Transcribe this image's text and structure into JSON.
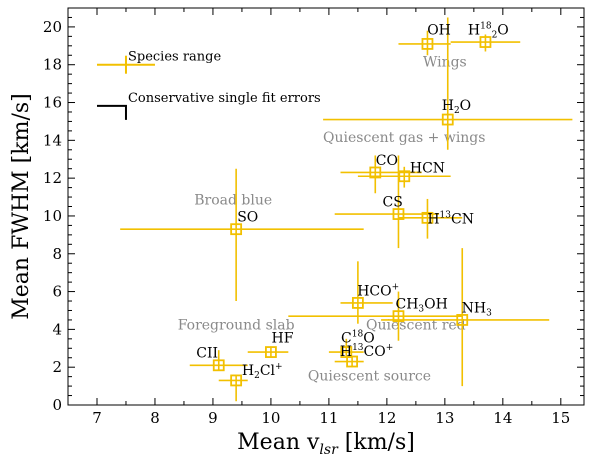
{
  "chart_data": {
    "type": "scatter",
    "xlabel": "Mean v",
    "xlabel_sub": "lsr",
    "xlabel_unit": "[km/s]",
    "ylabel": "Mean FWHM [km/s]",
    "xlim": [
      6.5,
      15.4
    ],
    "ylim": [
      0,
      21
    ],
    "xticks": [
      7,
      8,
      9,
      10,
      11,
      12,
      13,
      14,
      15
    ],
    "yticks": [
      0,
      2,
      4,
      6,
      8,
      10,
      12,
      14,
      16,
      18,
      20
    ],
    "color": "#f2c000",
    "legend": {
      "range_label": "Species range",
      "error_label": "Conservative single fit errors"
    },
    "regions": [
      {
        "text": "Wings",
        "x": 13.0,
        "y": 17.9
      },
      {
        "text": "Quiescent gas + wings",
        "x": 12.3,
        "y": 13.9
      },
      {
        "text": "Broad blue",
        "x": 9.35,
        "y": 10.6
      },
      {
        "text": "Foreground slab",
        "x": 9.4,
        "y": 4.0
      },
      {
        "text": "Quiescent red",
        "x": 12.5,
        "y": 4.0
      },
      {
        "text": "Quiescent source",
        "x": 11.7,
        "y": 1.3
      }
    ],
    "points": [
      {
        "label": "OH",
        "x": 12.7,
        "y": 19.1,
        "xr": [
          12.2,
          13.1
        ],
        "yr": [
          18.5,
          19.8
        ],
        "lx": 12.9,
        "ly": 19.6
      },
      {
        "label": "H",
        "sup": "18",
        "label2": "O",
        "sub": "2",
        "x": 13.7,
        "y": 19.2,
        "xr": [
          13.1,
          14.3
        ],
        "yr": [
          18.7,
          19.6
        ],
        "lx": 13.75,
        "ly": 19.6
      },
      {
        "label": "H",
        "label2": "O",
        "sub": "2",
        "x": 13.05,
        "y": 15.1,
        "xr": [
          10.9,
          15.2
        ],
        "yr": [
          13.5,
          20.5
        ],
        "lx": 13.2,
        "ly": 15.6
      },
      {
        "label": "CO",
        "x": 11.8,
        "y": 12.3,
        "xr": [
          11.2,
          12.6
        ],
        "yr": [
          11.2,
          13.2
        ],
        "lx": 12.0,
        "ly": 12.7
      },
      {
        "label": "HCN",
        "x": 12.3,
        "y": 12.1,
        "xr": [
          11.5,
          13.1
        ],
        "yr": [
          11.5,
          12.6
        ],
        "lx": 12.7,
        "ly": 12.3
      },
      {
        "label": "CS",
        "x": 12.2,
        "y": 10.1,
        "xr": [
          11.1,
          12.9
        ],
        "yr": [
          8.3,
          13.2
        ],
        "lx": 12.1,
        "ly": 10.5
      },
      {
        "label": "H",
        "sup": "13",
        "label2": "CN",
        "x": 12.7,
        "y": 9.9,
        "xr": [
          12.2,
          13.3
        ],
        "yr": [
          8.8,
          10.9
        ],
        "lx": 13.1,
        "ly": 9.6
      },
      {
        "label": "SO",
        "x": 9.4,
        "y": 9.3,
        "xr": [
          7.4,
          11.6
        ],
        "yr": [
          5.5,
          12.5
        ],
        "lx": 9.6,
        "ly": 9.7
      },
      {
        "label": "HCO",
        "sup": "+",
        "x": 11.5,
        "y": 5.4,
        "xr": [
          11.2,
          12.1
        ],
        "yr": [
          4.3,
          7.6
        ],
        "lx": 11.85,
        "ly": 5.8
      },
      {
        "label": "CH",
        "label2": "OH",
        "sub": "3",
        "x": 12.2,
        "y": 4.7,
        "xr": [
          10.3,
          13.3
        ],
        "yr": [
          3.4,
          6.0
        ],
        "lx": 12.6,
        "ly": 5.1
      },
      {
        "label": "NH",
        "sub": "3",
        "x": 13.3,
        "y": 4.5,
        "xr": [
          11.9,
          14.8
        ],
        "yr": [
          1.0,
          8.3
        ],
        "lx": 13.55,
        "ly": 4.9
      },
      {
        "label": "C",
        "sup": "18",
        "label2": "O",
        "x": 11.3,
        "y": 2.8,
        "xr": [
          11.0,
          11.6
        ],
        "yr": [
          2.5,
          3.5
        ],
        "lx": 11.5,
        "ly": 3.3
      },
      {
        "label": "H",
        "sup": "13",
        "label2": "CO",
        "sup2": "+",
        "x": 11.4,
        "y": 2.3,
        "xr": [
          11.1,
          11.6
        ],
        "yr": [
          2.0,
          2.6
        ],
        "lx": 11.65,
        "ly": 2.6
      },
      {
        "label": "HF",
        "x": 10.0,
        "y": 2.8,
        "xr": [
          9.6,
          10.3
        ],
        "yr": [
          2.5,
          3.1
        ],
        "lx": 10.2,
        "ly": 3.3
      },
      {
        "label": "CII",
        "x": 9.1,
        "y": 2.1,
        "xr": [
          8.6,
          9.6
        ],
        "yr": [
          1.8,
          2.9
        ],
        "lx": 8.9,
        "ly": 2.5
      },
      {
        "label": "H",
        "sub": "2",
        "label2": "Cl",
        "sup2": "+",
        "x": 9.4,
        "y": 1.3,
        "xr": [
          9.1,
          9.6
        ],
        "yr": [
          0.2,
          1.6
        ],
        "lx": 9.85,
        "ly": 1.6
      }
    ]
  }
}
